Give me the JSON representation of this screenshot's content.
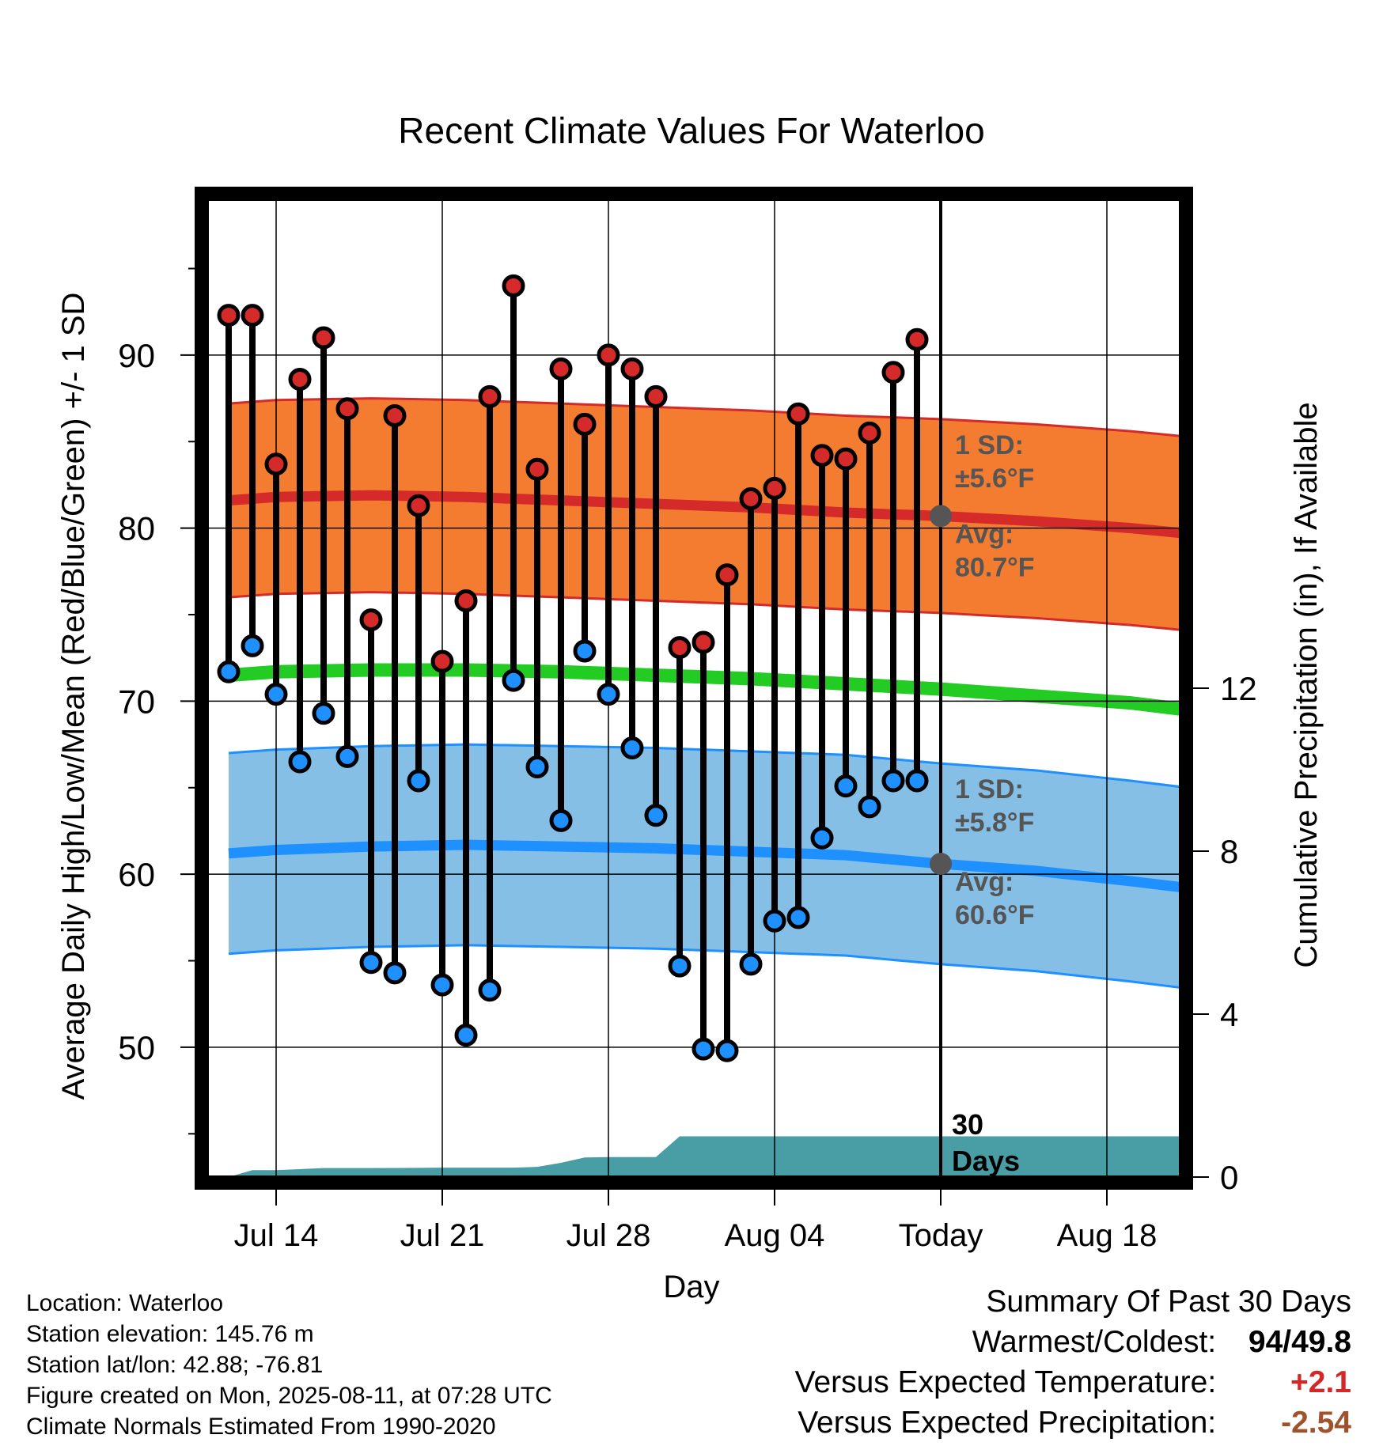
{
  "title": "Recent Climate Values For Waterloo",
  "chart_data": {
    "type": "line",
    "title": "Recent Climate Values For Waterloo",
    "xlabel": "Day",
    "ylabel_left": "Average Daily High/Low/Mean (Red/Blue/Green) +/- 1 SD",
    "ylabel_right": "Cumulative Precipitation (in), If Available",
    "x_ticks": [
      "Jul 14",
      "Jul 21",
      "Jul 28",
      "Aug 04",
      "Today",
      "Aug 18"
    ],
    "y_left_ticks": [
      50,
      60,
      70,
      80,
      90
    ],
    "y_left_range": [
      42.5,
      99
    ],
    "y_right_ticks": [
      0,
      4,
      8,
      12
    ],
    "y_right_range": [
      0,
      24
    ],
    "days": [
      "Jul 12",
      "Jul 13",
      "Jul 14",
      "Jul 15",
      "Jul 16",
      "Jul 17",
      "Jul 18",
      "Jul 19",
      "Jul 20",
      "Jul 21",
      "Jul 22",
      "Jul 23",
      "Jul 24",
      "Jul 25",
      "Jul 26",
      "Jul 27",
      "Jul 28",
      "Jul 29",
      "Jul 30",
      "Jul 31",
      "Aug 01",
      "Aug 02",
      "Aug 03",
      "Aug 04",
      "Aug 05",
      "Aug 06",
      "Aug 07",
      "Aug 08",
      "Aug 09",
      "Aug 10"
    ],
    "daily_high": [
      92.3,
      92.3,
      83.7,
      88.6,
      91.0,
      86.9,
      74.7,
      86.5,
      81.3,
      72.3,
      75.8,
      87.6,
      94.0,
      83.4,
      89.2,
      86.0,
      90.0,
      89.2,
      87.6,
      73.1,
      73.4,
      77.3,
      81.7,
      82.3,
      86.6,
      84.2,
      84.0,
      85.5,
      89.0,
      90.9
    ],
    "daily_low": [
      71.7,
      73.2,
      70.4,
      66.5,
      69.3,
      66.8,
      54.9,
      54.3,
      65.4,
      53.6,
      50.7,
      53.3,
      71.2,
      66.2,
      63.1,
      72.9,
      70.4,
      67.3,
      63.4,
      54.7,
      49.9,
      49.8,
      54.8,
      57.3,
      57.5,
      62.1,
      65.1,
      63.9,
      65.4,
      65.4
    ],
    "normal_days": [
      "Jul 12",
      "Jul 14",
      "Jul 18",
      "Jul 22",
      "Jul 26",
      "Jul 30",
      "Aug 03",
      "Aug 07",
      "Aug 11",
      "Aug 15",
      "Aug 19",
      "Aug 22"
    ],
    "normal_high": [
      81.6,
      81.8,
      81.9,
      81.8,
      81.6,
      81.4,
      81.2,
      80.9,
      80.7,
      80.4,
      80.0,
      79.6
    ],
    "normal_low": [
      61.2,
      61.4,
      61.6,
      61.7,
      61.6,
      61.5,
      61.3,
      61.1,
      60.6,
      60.2,
      59.6,
      59.1
    ],
    "normal_mean": [
      71.5,
      71.7,
      71.8,
      71.8,
      71.7,
      71.5,
      71.3,
      71.0,
      70.7,
      70.3,
      69.9,
      69.4
    ],
    "high_sd": 5.6,
    "low_sd": 5.8,
    "precip_cumulative": {
      "days": [
        "Jul 12",
        "Jul 13",
        "Jul 14",
        "Jul 16",
        "Jul 18",
        "Jul 21",
        "Jul 24",
        "Jul 25",
        "Jul 26",
        "Jul 27",
        "Jul 28",
        "Jul 30",
        "Jul 31",
        "Aug 01",
        "Aug 10",
        "Aug 22"
      ],
      "values": [
        0.0,
        0.17,
        0.17,
        0.22,
        0.22,
        0.23,
        0.23,
        0.25,
        0.35,
        0.48,
        0.49,
        0.49,
        1.0,
        1.0,
        1.0,
        1.0
      ]
    },
    "annotations": {
      "high_sd_label": "1 SD:",
      "high_sd_value": "±5.6°F",
      "high_avg_label": "Avg:",
      "high_avg_value": "80.7°F",
      "low_sd_label": "1 SD:",
      "low_sd_value": "±5.8°F",
      "low_avg_label": "Avg:",
      "low_avg_value": "60.6°F",
      "period_number": "30",
      "period_unit": "Days"
    },
    "today_avg_high": 80.7,
    "today_avg_low": 60.6,
    "colors": {
      "high_band": "#f47c30",
      "high_line": "#d42a2a",
      "low_band": "#85bfe6",
      "low_line": "#1e90ff",
      "mean_line": "#22cc22",
      "precip": "#489ea4",
      "high_dot": "#d42a2a",
      "low_dot": "#1e90ff",
      "annotation": "#555555"
    },
    "grid": true
  },
  "info": {
    "location": "Location: Waterloo",
    "elevation": "Station elevation: 145.76 m",
    "latlon": "Station lat/lon: 42.88; -76.81",
    "created": "Figure created on Mon, 2025-08-11, at 07:28 UTC",
    "normals": "Climate Normals Estimated From 1990-2020"
  },
  "summary": {
    "heading": "Summary Of Past 30 Days",
    "warm_cold_label": "Warmest/Coldest:",
    "warm_cold_value": "94/49.8",
    "temp_label": "Versus Expected Temperature:",
    "temp_value": "+2.1",
    "precip_label": "Versus Expected Precipitation:",
    "precip_value": "-2.54"
  }
}
